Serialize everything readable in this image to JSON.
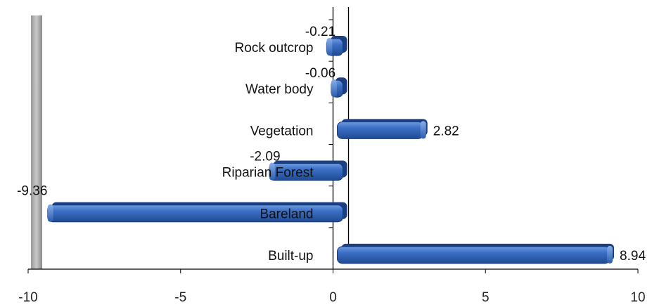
{
  "chart_data": {
    "type": "bar",
    "orientation": "horizontal",
    "style": "3d-cylinder",
    "bar_color": "#2E62B8",
    "categories": [
      "Built-up",
      "Bareland",
      "Riparian Forest",
      "Vegetation",
      "Water body",
      "Rock outcrop"
    ],
    "values": [
      8.94,
      -9.36,
      -2.09,
      2.82,
      -0.06,
      -0.21
    ],
    "value_labels": [
      "8.94",
      "-9.36",
      "-2.09",
      "2.82",
      "-0.06",
      "-0.21"
    ],
    "xlim": [
      -10,
      10
    ],
    "x_ticks": [
      -10,
      -5,
      0,
      5,
      10
    ],
    "x_tick_labels": [
      "-10",
      "-5",
      "0",
      "5",
      "10"
    ],
    "title": "",
    "xlabel": "",
    "ylabel": "",
    "grid": false,
    "legend": "none"
  }
}
